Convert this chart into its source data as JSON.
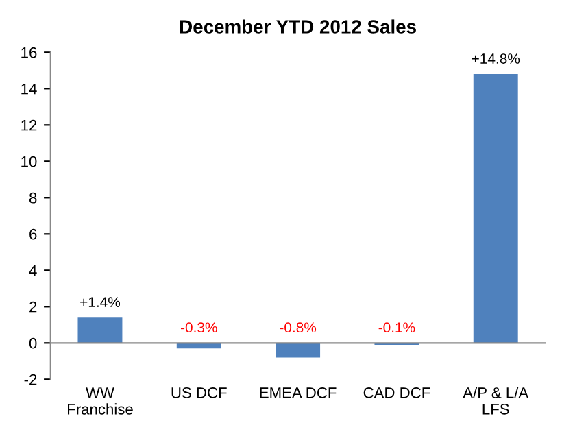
{
  "chart_data": {
    "type": "bar",
    "title": "December YTD 2012 Sales",
    "categories": [
      "WW\nFranchise",
      "US DCF",
      "EMEA DCF",
      "CAD DCF",
      "A/P & L/A\nLFS"
    ],
    "values": [
      1.4,
      -0.3,
      -0.8,
      -0.1,
      14.8
    ],
    "value_labels": [
      "+1.4%",
      "-0.3%",
      "-0.8%",
      "-0.1%",
      "+14.8%"
    ],
    "color": "#4f81bd",
    "ylim": [
      -2,
      16
    ],
    "yticks": [
      -2,
      0,
      2,
      4,
      6,
      8,
      10,
      12,
      14,
      16
    ]
  }
}
